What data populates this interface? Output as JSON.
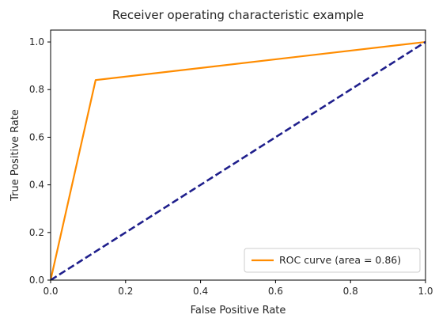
{
  "chart_data": {
    "type": "line",
    "title": "Receiver operating characteristic example",
    "xlabel": "False Positive Rate",
    "ylabel": "True Positive Rate",
    "xlim": [
      0.0,
      1.0
    ],
    "ylim": [
      0.0,
      1.05
    ],
    "x_ticks": [
      "0.0",
      "0.2",
      "0.4",
      "0.6",
      "0.8",
      "1.0"
    ],
    "y_ticks": [
      "0.0",
      "0.2",
      "0.4",
      "0.6",
      "0.8",
      "1.0"
    ],
    "grid": false,
    "legend_position": "lower-right",
    "series": [
      {
        "name": "ROC curve (area = 0.86)",
        "x": [
          0.0,
          0.12,
          1.0
        ],
        "y": [
          0.0,
          0.84,
          1.0
        ],
        "color": "#ff8c00",
        "style": "solid"
      },
      {
        "x": [
          0.0,
          1.0
        ],
        "y": [
          0.0,
          1.0
        ],
        "color": "#1f1f8c",
        "style": "dashed"
      }
    ]
  }
}
